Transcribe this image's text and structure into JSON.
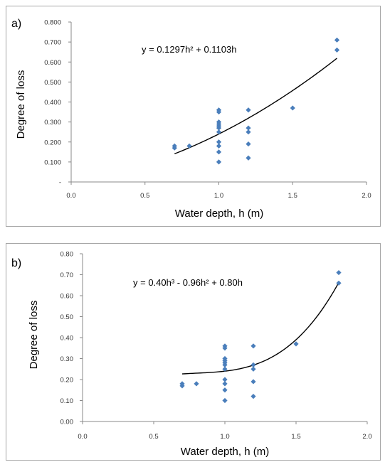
{
  "chart_data": [
    {
      "id": "a",
      "type": "scatter",
      "panel_label": "a)",
      "equation": "y = 0.1297h² + 0.1103h",
      "xlabel": "Water depth, h (m)",
      "ylabel": "Degree of loss",
      "xlim": [
        0,
        2
      ],
      "ylim": [
        0,
        0.8
      ],
      "x_ticks": [
        0,
        0.5,
        1.0,
        1.5,
        2.0
      ],
      "x_tick_labels": [
        "0.0",
        "0.5",
        "1.0",
        "1.5",
        "2.0"
      ],
      "y_ticks": [
        0,
        0.1,
        0.2,
        0.3,
        0.4,
        0.5,
        0.6,
        0.7,
        0.8
      ],
      "y_tick_labels": [
        "-",
        "0.100",
        "0.200",
        "0.300",
        "0.400",
        "0.500",
        "0.600",
        "0.700",
        "0.800"
      ],
      "trendline": {
        "coefficients": [
          0.1297,
          0.1103,
          0
        ],
        "x_range": [
          0.7,
          1.8
        ]
      },
      "points": [
        [
          0.7,
          0.18
        ],
        [
          0.7,
          0.17
        ],
        [
          0.8,
          0.18
        ],
        [
          1.0,
          0.1
        ],
        [
          1.0,
          0.15
        ],
        [
          1.0,
          0.18
        ],
        [
          1.0,
          0.2
        ],
        [
          1.0,
          0.25
        ],
        [
          1.0,
          0.27
        ],
        [
          1.0,
          0.28
        ],
        [
          1.0,
          0.29
        ],
        [
          1.0,
          0.3
        ],
        [
          1.0,
          0.35
        ],
        [
          1.0,
          0.36
        ],
        [
          1.2,
          0.12
        ],
        [
          1.2,
          0.19
        ],
        [
          1.2,
          0.25
        ],
        [
          1.2,
          0.27
        ],
        [
          1.2,
          0.36
        ],
        [
          1.5,
          0.37
        ],
        [
          1.8,
          0.66
        ],
        [
          1.8,
          0.71
        ]
      ],
      "grid": false
    },
    {
      "id": "b",
      "type": "scatter",
      "panel_label": "b)",
      "equation": "y = 0.40h³ - 0.96h² + 0.80h",
      "xlabel": "Water depth, h (m)",
      "ylabel": "Degree of loss",
      "xlim": [
        0,
        2
      ],
      "ylim": [
        0,
        0.8
      ],
      "x_ticks": [
        0,
        0.5,
        1.0,
        1.5,
        2.0
      ],
      "x_tick_labels": [
        "0.0",
        "0.5",
        "1.0",
        "1.5",
        "2.0"
      ],
      "y_ticks": [
        0,
        0.1,
        0.2,
        0.3,
        0.4,
        0.5,
        0.6,
        0.7,
        0.8
      ],
      "y_tick_labels": [
        "0.00",
        "0.10",
        "0.20",
        "0.30",
        "0.40",
        "0.50",
        "0.60",
        "0.70",
        "0.80"
      ],
      "trendline": {
        "coefficients": [
          0.4,
          -0.96,
          0.8,
          0
        ],
        "x_range": [
          0.7,
          1.8
        ]
      },
      "points": [
        [
          0.7,
          0.18
        ],
        [
          0.7,
          0.17
        ],
        [
          0.8,
          0.18
        ],
        [
          1.0,
          0.1
        ],
        [
          1.0,
          0.15
        ],
        [
          1.0,
          0.18
        ],
        [
          1.0,
          0.2
        ],
        [
          1.0,
          0.25
        ],
        [
          1.0,
          0.27
        ],
        [
          1.0,
          0.28
        ],
        [
          1.0,
          0.29
        ],
        [
          1.0,
          0.3
        ],
        [
          1.0,
          0.35
        ],
        [
          1.0,
          0.36
        ],
        [
          1.2,
          0.12
        ],
        [
          1.2,
          0.19
        ],
        [
          1.2,
          0.25
        ],
        [
          1.2,
          0.27
        ],
        [
          1.2,
          0.36
        ],
        [
          1.5,
          0.37
        ],
        [
          1.8,
          0.66
        ],
        [
          1.8,
          0.71
        ]
      ],
      "grid": false
    }
  ]
}
